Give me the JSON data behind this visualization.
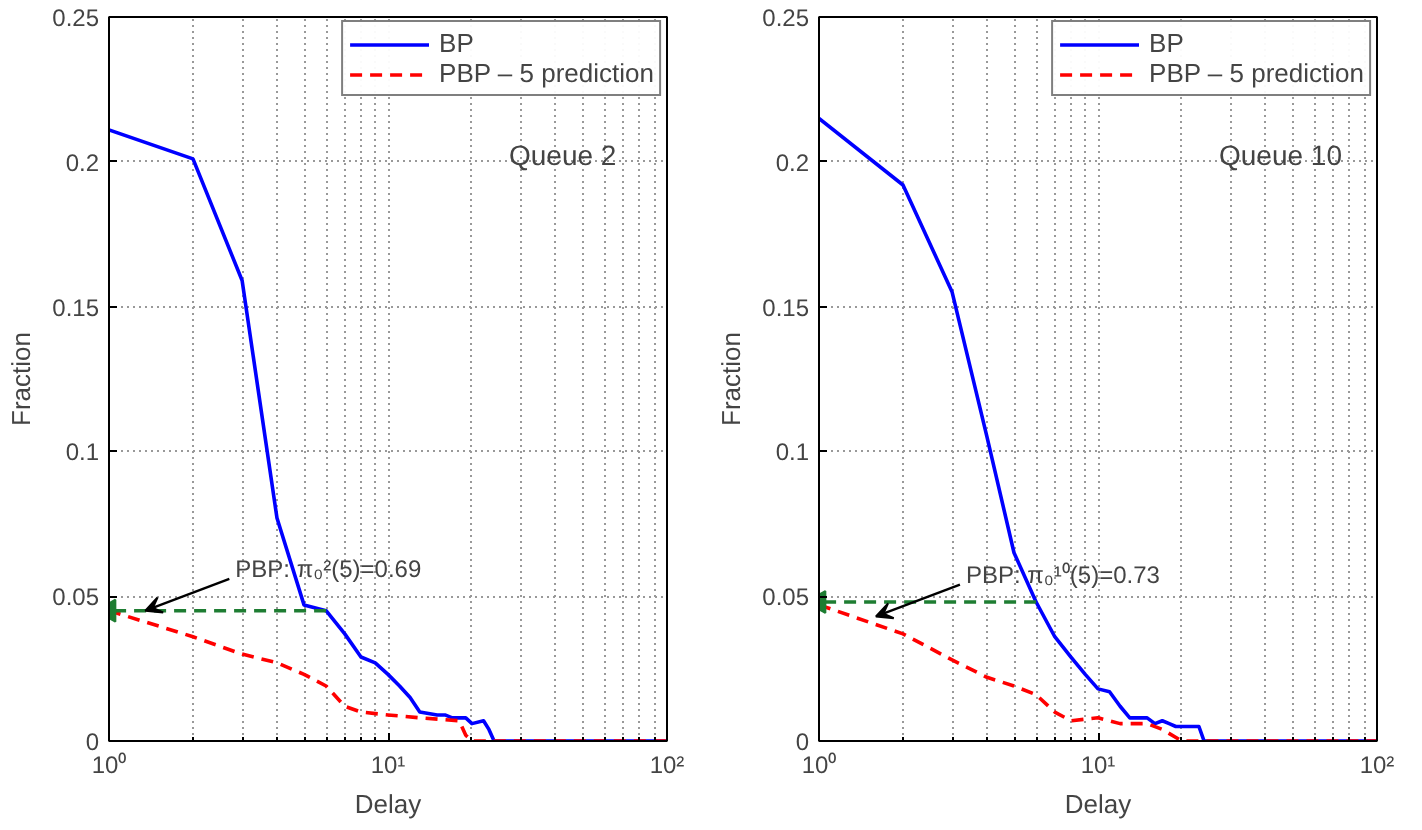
{
  "chart_data": [
    {
      "type": "line",
      "xlabel": "Delay",
      "ylabel": "Fraction",
      "log": "x",
      "xlim": [
        1,
        100
      ],
      "ylim": [
        0,
        0.25
      ],
      "xticks": [
        {
          "value": 1,
          "label": "10⁰"
        },
        {
          "value": 10,
          "label": "10¹"
        },
        {
          "value": 100,
          "label": "10²"
        }
      ],
      "yticks": [
        0,
        0.05,
        0.1,
        0.15,
        0.2,
        0.25
      ],
      "grid": true,
      "legend": "top right",
      "annotations": [
        "Queue 2",
        {
          "text": "PBP: π₀²(5)=0.69",
          "x": 1.35,
          "y": 0.045
        }
      ],
      "series": [
        {
          "name": "BP",
          "color": "#0000ff",
          "line_style": "solid",
          "x": [
            1,
            2,
            3,
            4,
            5,
            6,
            7,
            8,
            9,
            10,
            11,
            12,
            13,
            15,
            16,
            17,
            19,
            20,
            22,
            23,
            24,
            100
          ],
          "values": [
            0.211,
            0.201,
            0.159,
            0.077,
            0.047,
            0.045,
            0.037,
            0.029,
            0.027,
            0.023,
            0.019,
            0.015,
            0.01,
            0.009,
            0.009,
            0.008,
            0.008,
            0.006,
            0.007,
            0.004,
            0,
            0
          ]
        },
        {
          "name": "PBP – 5 prediction",
          "color": "#ff0000",
          "line_style": "dashed",
          "x": [
            1,
            2,
            3,
            4,
            5,
            6,
            7,
            8,
            10,
            13,
            18,
            19,
            20,
            100
          ],
          "values": [
            0.045,
            0.036,
            0.03,
            0.027,
            0.023,
            0.019,
            0.012,
            0.01,
            0.009,
            0.008,
            0.007,
            0.002,
            0,
            0
          ]
        },
        {
          "color": "#1e7d32",
          "line_style": "dashed",
          "x": [
            6,
            1
          ],
          "values": [
            0.045,
            0.045
          ]
        }
      ]
    },
    {
      "type": "line",
      "xlabel": "Delay",
      "ylabel": "Fraction",
      "log": "x",
      "xlim": [
        1,
        100
      ],
      "ylim": [
        0,
        0.25
      ],
      "xticks": [
        {
          "value": 1,
          "label": "10⁰"
        },
        {
          "value": 10,
          "label": "10¹"
        },
        {
          "value": 100,
          "label": "10²"
        }
      ],
      "yticks": [
        0,
        0.05,
        0.1,
        0.15,
        0.2,
        0.25
      ],
      "grid": true,
      "legend": "top right",
      "annotations": [
        "Queue 10",
        {
          "text": "PBP: π₀¹⁰(5)=0.73",
          "x": 1.6,
          "y": 0.043
        }
      ],
      "series": [
        {
          "name": "BP",
          "color": "#0000ff",
          "line_style": "solid",
          "x": [
            1,
            2,
            3,
            4,
            5,
            6,
            7,
            8,
            9,
            10,
            11,
            12,
            13,
            15,
            16,
            17,
            18,
            19,
            23,
            24,
            100
          ],
          "values": [
            0.215,
            0.192,
            0.155,
            0.105,
            0.065,
            0.048,
            0.036,
            0.029,
            0.023,
            0.018,
            0.017,
            0.012,
            0.008,
            0.008,
            0.006,
            0.007,
            0.006,
            0.005,
            0.005,
            0,
            0
          ]
        },
        {
          "name": "PBP – 5 prediction",
          "color": "#ff0000",
          "line_style": "dashed",
          "x": [
            1,
            2,
            3,
            4,
            5,
            6,
            7,
            8,
            10,
            12,
            15,
            17,
            20,
            100
          ],
          "values": [
            0.047,
            0.037,
            0.028,
            0.022,
            0.019,
            0.016,
            0.01,
            0.007,
            0.008,
            0.006,
            0.006,
            0.004,
            0,
            0
          ]
        },
        {
          "color": "#1e7d32",
          "line_style": "dashed",
          "x": [
            6,
            1
          ],
          "values": [
            0.048,
            0.048
          ]
        }
      ]
    }
  ]
}
